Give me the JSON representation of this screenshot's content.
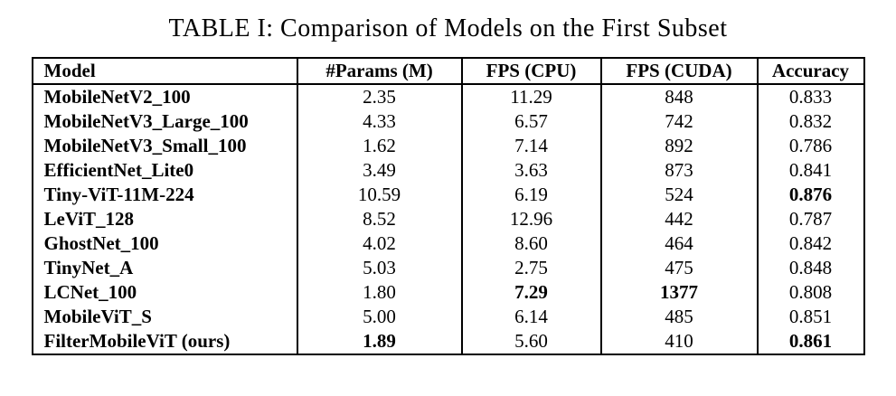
{
  "title": "TABLE I: Comparison of Models on the First Subset",
  "table": {
    "columns": [
      {
        "key": "model",
        "label": "Model"
      },
      {
        "key": "params",
        "label": "#Params (M)"
      },
      {
        "key": "fps_cpu",
        "label": "FPS (CPU)"
      },
      {
        "key": "fps_cuda",
        "label": "FPS (CUDA)"
      },
      {
        "key": "accuracy",
        "label": "Accuracy"
      }
    ],
    "rows": [
      {
        "model": "MobileNetV2_100",
        "params": "2.35",
        "fps_cpu": "11.29",
        "fps_cuda": "848",
        "accuracy": "0.833",
        "bold": []
      },
      {
        "model": "MobileNetV3_Large_100",
        "params": "4.33",
        "fps_cpu": "6.57",
        "fps_cuda": "742",
        "accuracy": "0.832",
        "bold": []
      },
      {
        "model": "MobileNetV3_Small_100",
        "params": "1.62",
        "fps_cpu": "7.14",
        "fps_cuda": "892",
        "accuracy": "0.786",
        "bold": []
      },
      {
        "model": "EfficientNet_Lite0",
        "params": "3.49",
        "fps_cpu": "3.63",
        "fps_cuda": "873",
        "accuracy": "0.841",
        "bold": []
      },
      {
        "model": "Tiny-ViT-11M-224",
        "params": "10.59",
        "fps_cpu": "6.19",
        "fps_cuda": "524",
        "accuracy": "0.876",
        "bold": [
          "accuracy"
        ]
      },
      {
        "model": "LeViT_128",
        "params": "8.52",
        "fps_cpu": "12.96",
        "fps_cuda": "442",
        "accuracy": "0.787",
        "bold": []
      },
      {
        "model": "GhostNet_100",
        "params": "4.02",
        "fps_cpu": "8.60",
        "fps_cuda": "464",
        "accuracy": "0.842",
        "bold": []
      },
      {
        "model": "TinyNet_A",
        "params": "5.03",
        "fps_cpu": "2.75",
        "fps_cuda": "475",
        "accuracy": "0.848",
        "bold": []
      },
      {
        "model": "LCNet_100",
        "params": "1.80",
        "fps_cpu": "7.29",
        "fps_cuda": "1377",
        "accuracy": "0.808",
        "bold": [
          "fps_cpu",
          "fps_cuda"
        ]
      },
      {
        "model": "MobileViT_S",
        "params": "5.00",
        "fps_cpu": "6.14",
        "fps_cuda": "485",
        "accuracy": "0.851",
        "bold": []
      },
      {
        "model": "FilterMobileViT (ours)",
        "params": "1.89",
        "fps_cpu": "5.60",
        "fps_cuda": "410",
        "accuracy": "0.861",
        "bold": [
          "params",
          "accuracy"
        ]
      }
    ]
  }
}
